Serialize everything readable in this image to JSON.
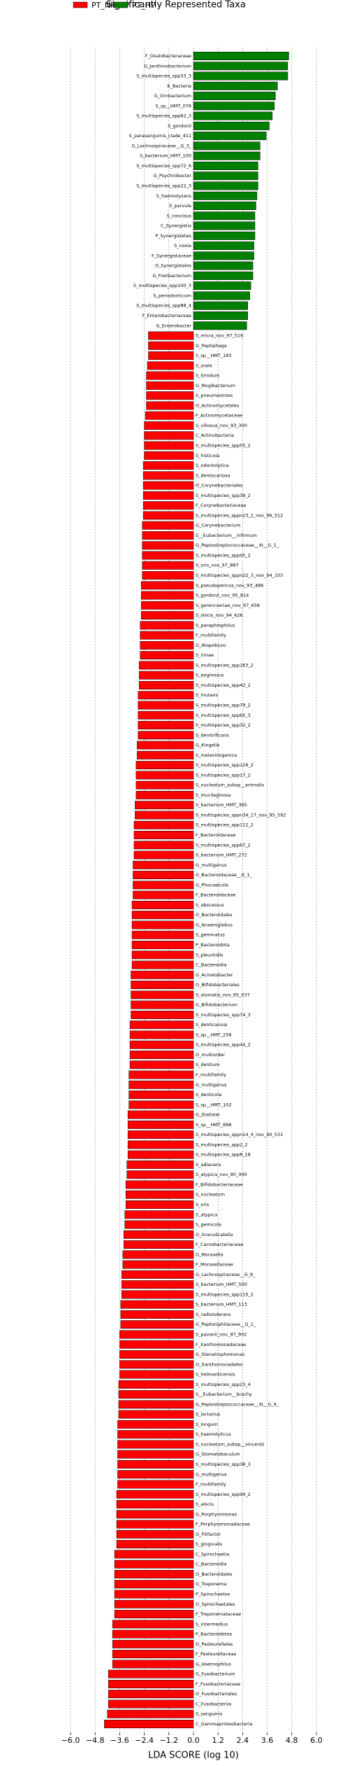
{
  "chart_data": {
    "type": "bar",
    "orientation": "horizontal",
    "title": "Significantly Represented Taxa",
    "xlabel": "LDA SCORE (log 10)",
    "xlim": [
      -6,
      6
    ],
    "xticks": [
      {
        "value": -6,
        "label": "−6.0"
      },
      {
        "value": -4.8,
        "label": "−4.8"
      },
      {
        "value": -3.6,
        "label": "−3.6"
      },
      {
        "value": -2.4,
        "label": "−2.4"
      },
      {
        "value": -1.2,
        "label": "−1.2"
      },
      {
        "value": 0,
        "label": "0.0"
      },
      {
        "value": 1.2,
        "label": "1.2"
      },
      {
        "value": 2.4,
        "label": "2.4"
      },
      {
        "value": 3.6,
        "label": "3.6"
      },
      {
        "value": 4.8,
        "label": "4.8"
      },
      {
        "value": 6,
        "label": "6.0"
      }
    ],
    "grid": true,
    "series": [
      {
        "name": "PT_HP",
        "color": "#008000",
        "categories": [
          "F_Oxalobacteraceae",
          "G_Janthinobacterium",
          "S_multispecies_spp33_3",
          "K_Bacteria",
          "G_Ornbacterium",
          "S_sp__HMT_078",
          "S_multispecies_spp62_3",
          "S_gordonii",
          "S_parasanguinis_clade_411",
          "G_Lachnospiraceae__G_3_",
          "S_bacterium_HMT_100",
          "S_multispecies_spp72_6",
          "G_Psychrobacter",
          "S_multispecies_spp22_3",
          "S_haemolysans",
          "S_parvula",
          "S_concisus",
          "C_Synergistia",
          "P_Synergistetes",
          "S_noxia",
          "F_Synergistaceae",
          "O_Synergistales",
          "G_Fretibacterium",
          "S_multispecies_spp100_3",
          "S_periodonticum",
          "S_multispecies_spp88_4",
          "F_Enterobacteriaceae",
          "G_Enterobacter"
        ],
        "values": [
          4.65,
          4.6,
          4.6,
          4.1,
          4.0,
          3.95,
          3.85,
          3.7,
          3.55,
          3.25,
          3.25,
          3.15,
          3.15,
          3.15,
          3.1,
          3.05,
          3.0,
          3.0,
          3.0,
          2.95,
          2.95,
          2.9,
          2.9,
          2.8,
          2.75,
          2.65,
          2.65,
          2.6
        ]
      },
      {
        "name": "PT_NP_HP",
        "color": "#ff0000",
        "categories": [
          "S_micra_nov_97_519",
          "G_Peptiphaga",
          "S_sp__HMT_183",
          "S_orale",
          "S_timidum",
          "G_Mogibacterium",
          "S_pneumosintes",
          "O_Actinomycetales",
          "F_Actinomycetaceae",
          "S_villosus_nov_93_300",
          "C_Actinobacteria",
          "S_multispecies_spp55_2",
          "S_histicola",
          "S_odontolytica",
          "S_dentocariosa",
          "O_Corynebacteriales",
          "S_multispecies_spp39_2",
          "F_Corynebacteriaceae",
          "S_multispecies_sppn23_2_nov_96_512",
          "G_Corynebacterium",
          "S__Eubacterium__infirmum",
          "G_Peptostreptococcaceae__XI__G_1_",
          "S_multispecies_spp45_2",
          "S_oris_nov_97_887",
          "S_multispecies_sppn22_3_nov_94_103",
          "S_pseudopericus_nov_93_488",
          "S_gordonii_nov_95_814",
          "S_gerencseriae_nov_97_658",
          "S_slocis_nov_94_626",
          "S_paraphrophilus",
          "F_multifamily",
          "G_Atopobium",
          "S_rimae",
          "S_multispecies_spp163_2",
          "S_anginosus",
          "S_multispecies_spp42_2",
          "S_mutans",
          "S_multispecies_spp79_2",
          "S_multispecies_spp65_3",
          "S_multispecies_spp32_2",
          "S_denitrificans",
          "G_Kingella",
          "S_melaninogenica",
          "S_multispecies_spp129_2",
          "S_multispecies_spp17_2",
          "S_nucleatum_subsp__animalis",
          "S_mucilaginosa",
          "S_bacterium_HMT_365",
          "S_multispecies_sppn34_17_nov_95_592",
          "S_multispecies_spp112_2",
          "F_Bacteroidaceae",
          "S_multispecies_spp67_2",
          "S_bacterium_HMT_272",
          "G_multigenus",
          "G_Bacteroidaceae__G_1_",
          "G_Phocaeicola",
          "F_Bacteroidaceae",
          "S_abscessus",
          "O_Bacteroidales",
          "G_Anaeroglobus",
          "S_geminatus",
          "P_Bacteroidota",
          "S_pleuritidis",
          "C_Bacteroidia",
          "G_Acinetobacter",
          "O_Bifidobacteriales",
          "S_stomatis_nov_95_037",
          "G_Bifidobacterium",
          "S_multispecies_spp74_3",
          "S_denticaroiai",
          "S_sp__HMT_258",
          "S_multispecies_spp44_2",
          "O_multiorder",
          "S_dentium",
          "F_multifamily",
          "G_multigenus",
          "S_denticola",
          "S_sp__HMT_102",
          "G_Dialister",
          "S_sp__HMT_898",
          "S_multispecies_sppn14_4_nov_90_531",
          "S_multispecies_spp2_2",
          "S_multispecies_spp8_18",
          "S_adiacens",
          "S_atypica_nov_90_000",
          "F_Bifidobacteriaceae",
          "S_nucleatum",
          "S_oris",
          "S_atypica",
          "S_gemicola",
          "G_Granulicatella",
          "F_Carnobacteriaceae",
          "G_Moraxella",
          "F_Moraxellaceae",
          "G_Lachnospiraceae__G_8_",
          "S_bacterium_HMT_500",
          "S_multispecies_spp115_2",
          "S_bacterium_HMT_113",
          "S_radiotolerans",
          "G_Peptoniphilaceae__G_1_",
          "S_pavanii_nov_97_902",
          "F_Xanthomonadaceae",
          "G_Stenotrophomonas",
          "O_Xanthomonadales",
          "S_helmanticensis",
          "S_multispecies_spp23_4",
          "S__Eubacterium__brachy",
          "G_Peptostreptococcaceae__XI__G_9_",
          "S_lactarius",
          "S_longum",
          "S_haemolyticus",
          "S_nucleatum_subsp__vincentii",
          "G_Stomatobaculum",
          "S_multispecies_spp38_3",
          "G_multigenus",
          "F_multifamily",
          "S_multispecies_spp94_2",
          "S_alocis",
          "G_Porphyromonas",
          "F_Porphyromonadaceae",
          "G_Filifactor",
          "S_gingivalis",
          "C_Spirochaetia",
          "C_Bacteroidia",
          "O_Bacteroidales",
          "G_Treponema",
          "P_Spirochaetes",
          "O_Spirochaetales",
          "F_Treponemataceae",
          "S_intermedius",
          "P_Bacteroidetes",
          "O_Pasteurellales",
          "F_Pasteurellaceae",
          "G_Haemophilus",
          "G_Fusobacterium",
          "F_Fusobacteriaceae",
          "O_Fusobacteriales",
          "C_Fusobacteriia",
          "S_sanguinis",
          "C_Gammaproteobacteria"
        ],
        "values": [
          -2.2,
          -2.2,
          -2.2,
          -2.25,
          -2.3,
          -2.3,
          -2.3,
          -2.3,
          -2.35,
          -2.4,
          -2.4,
          -2.4,
          -2.4,
          -2.45,
          -2.45,
          -2.45,
          -2.45,
          -2.45,
          -2.45,
          -2.5,
          -2.5,
          -2.5,
          -2.5,
          -2.5,
          -2.5,
          -2.55,
          -2.55,
          -2.55,
          -2.55,
          -2.6,
          -2.6,
          -2.6,
          -2.6,
          -2.65,
          -2.65,
          -2.65,
          -2.7,
          -2.7,
          -2.7,
          -2.7,
          -2.7,
          -2.75,
          -2.75,
          -2.8,
          -2.8,
          -2.8,
          -2.8,
          -2.85,
          -2.85,
          -2.9,
          -2.9,
          -2.9,
          -2.9,
          -2.95,
          -2.95,
          -2.95,
          -2.95,
          -3.0,
          -3.0,
          -3.0,
          -3.0,
          -3.0,
          -3.0,
          -3.0,
          -3.05,
          -3.05,
          -3.05,
          -3.05,
          -3.05,
          -3.1,
          -3.1,
          -3.1,
          -3.1,
          -3.1,
          -3.15,
          -3.15,
          -3.15,
          -3.15,
          -3.2,
          -3.2,
          -3.2,
          -3.2,
          -3.2,
          -3.25,
          -3.25,
          -3.3,
          -3.3,
          -3.3,
          -3.35,
          -3.35,
          -3.4,
          -3.4,
          -3.45,
          -3.45,
          -3.5,
          -3.5,
          -3.5,
          -3.55,
          -3.55,
          -3.55,
          -3.6,
          -3.6,
          -3.6,
          -3.6,
          -3.6,
          -3.65,
          -3.65,
          -3.65,
          -3.65,
          -3.7,
          -3.7,
          -3.7,
          -3.7,
          -3.7,
          -3.7,
          -3.7,
          -3.75,
          -3.75,
          -3.75,
          -3.75,
          -3.75,
          -3.75,
          -3.85,
          -3.85,
          -3.85,
          -3.85,
          -3.85,
          -3.85,
          -3.85,
          -3.95,
          -3.95,
          -3.95,
          -3.95,
          -3.95,
          -4.15,
          -4.15,
          -4.15,
          -4.15,
          -4.2,
          -4.35
        ]
      }
    ],
    "legend_order": [
      1,
      0
    ]
  }
}
